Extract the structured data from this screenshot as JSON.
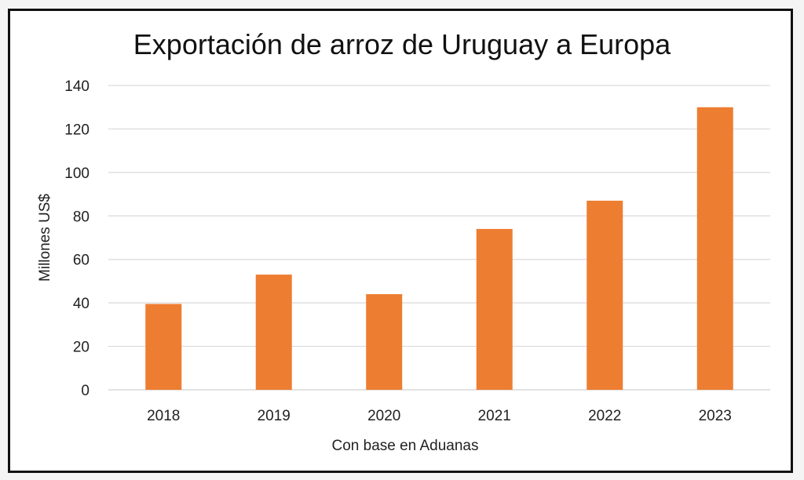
{
  "chart_data": {
    "type": "bar",
    "title": "Exportación de arroz de Uruguay a Europa",
    "xlabel": "Con base en Aduanas",
    "ylabel": "Millones US$",
    "categories": [
      "2018",
      "2019",
      "2020",
      "2021",
      "2022",
      "2023"
    ],
    "values": [
      39.5,
      53,
      44,
      74,
      87,
      130
    ],
    "ylim": [
      0,
      140
    ],
    "yticks": [
      0,
      20,
      40,
      60,
      80,
      100,
      120,
      140
    ],
    "ytick_labels": [
      "0",
      "20",
      "40",
      "60",
      "80",
      "100",
      "120",
      "140"
    ],
    "grid": true,
    "legend": "none",
    "bar_color": "#ED7D31",
    "grid_color": "#D9D9D9"
  }
}
